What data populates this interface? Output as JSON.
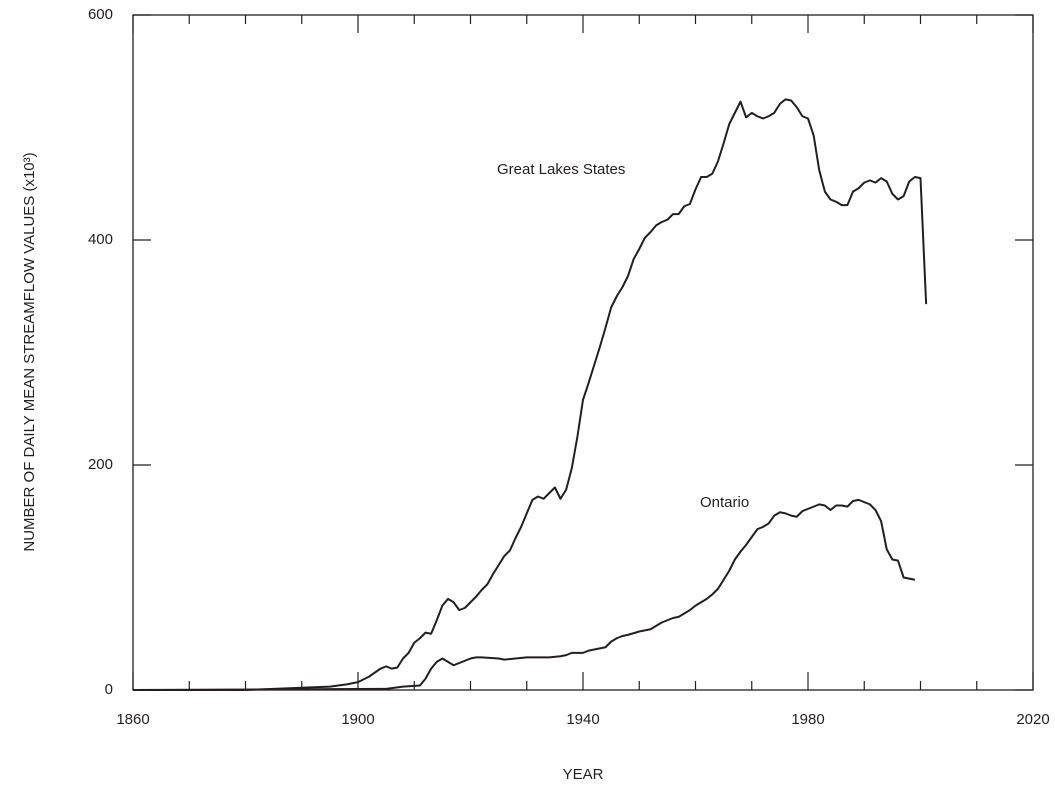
{
  "chart_data": {
    "type": "line",
    "x_label": "YEAR",
    "y_label": "NUMBER OF DAILY MEAN STREAMFLOW VALUES (x10³)",
    "xlim": [
      1860,
      2020
    ],
    "xticks": [
      1860,
      1900,
      1940,
      1980,
      2020
    ],
    "x_minor_ticks": [
      1870,
      1880,
      1890,
      1910,
      1920,
      1930,
      1950,
      1960,
      1970,
      1990,
      2000,
      2010
    ],
    "ylim": [
      0,
      600
    ],
    "yticks": [
      0,
      200,
      400,
      600
    ],
    "grid": false,
    "series": [
      {
        "name": "Great Lakes States",
        "color": "#231f20",
        "x": [
          1860,
          1880,
          1885,
          1890,
          1895,
          1898,
          1900,
          1902,
          1904,
          1905,
          1906,
          1907,
          1908,
          1909,
          1910,
          1911,
          1912,
          1913,
          1914,
          1915,
          1916,
          1917,
          1918,
          1919,
          1920,
          1921,
          1922,
          1923,
          1924,
          1925,
          1926,
          1927,
          1928,
          1929,
          1930,
          1931,
          1932,
          1933,
          1934,
          1935,
          1936,
          1937,
          1938,
          1939,
          1940,
          1941,
          1942,
          1943,
          1944,
          1945,
          1946,
          1947,
          1948,
          1949,
          1950,
          1951,
          1952,
          1953,
          1954,
          1955,
          1956,
          1957,
          1958,
          1959,
          1960,
          1961,
          1962,
          1963,
          1964,
          1965,
          1966,
          1967,
          1968,
          1969,
          1970,
          1971,
          1972,
          1973,
          1974,
          1975,
          1976,
          1977,
          1978,
          1979,
          1980,
          1981,
          1982,
          1983,
          1984,
          1985,
          1986,
          1987,
          1988,
          1989,
          1990,
          1991,
          1992,
          1993,
          1994,
          1995,
          1996,
          1997,
          1998,
          1999,
          2000,
          2001
        ],
        "values": [
          0,
          0,
          1,
          2,
          3,
          5,
          7,
          12,
          19,
          21,
          19,
          20,
          28,
          33,
          42,
          46,
          51,
          50,
          62,
          75,
          81,
          78,
          71,
          73,
          78,
          83,
          89,
          94,
          103,
          111,
          119,
          124,
          135,
          145,
          157,
          169,
          172,
          170,
          175,
          180,
          170,
          178,
          197,
          225,
          258,
          273,
          289,
          305,
          322,
          340,
          350,
          358,
          368,
          383,
          392,
          402,
          407,
          413,
          416,
          418,
          423,
          423,
          430,
          432,
          445,
          456,
          456,
          459,
          470,
          486,
          503,
          513,
          523,
          509,
          513,
          510,
          508,
          510,
          513,
          521,
          525,
          524,
          518,
          510,
          508,
          493,
          462,
          443,
          436,
          434,
          431,
          431,
          443,
          446,
          451,
          453,
          451,
          455,
          452,
          441,
          436,
          439,
          452,
          456,
          455,
          343
        ]
      },
      {
        "name": "Ontario",
        "color": "#231f20",
        "x": [
          1860,
          1905,
          1908,
          1911,
          1912,
          1913,
          1914,
          1915,
          1916,
          1917,
          1918,
          1919,
          1920,
          1921,
          1922,
          1925,
          1926,
          1928,
          1930,
          1932,
          1934,
          1936,
          1937,
          1938,
          1940,
          1941,
          1942,
          1944,
          1945,
          1946,
          1947,
          1948,
          1950,
          1952,
          1953,
          1954,
          1955,
          1956,
          1957,
          1958,
          1959,
          1960,
          1961,
          1962,
          1963,
          1964,
          1965,
          1966,
          1967,
          1968,
          1969,
          1970,
          1971,
          1972,
          1973,
          1974,
          1975,
          1976,
          1977,
          1978,
          1979,
          1980,
          1981,
          1982,
          1983,
          1984,
          1985,
          1986,
          1987,
          1988,
          1989,
          1990,
          1991,
          1992,
          1993,
          1994,
          1995,
          1996,
          1997,
          1998,
          1999
        ],
        "values": [
          0,
          1,
          3,
          4,
          10,
          19,
          25,
          28,
          25,
          22,
          24,
          26,
          28,
          29,
          29,
          28,
          27,
          28,
          29,
          29,
          29,
          30,
          31,
          33,
          33,
          35,
          36,
          38,
          43,
          46,
          48,
          49,
          52,
          54,
          57,
          60,
          62,
          64,
          65,
          68,
          71,
          75,
          78,
          81,
          85,
          90,
          98,
          106,
          116,
          123,
          129,
          136,
          143,
          145,
          148,
          155,
          158,
          157,
          155,
          154,
          159,
          161,
          163,
          165,
          164,
          160,
          164,
          164,
          163,
          168,
          169,
          167,
          165,
          160,
          150,
          125,
          116,
          115,
          100,
          99,
          98
        ]
      }
    ]
  }
}
